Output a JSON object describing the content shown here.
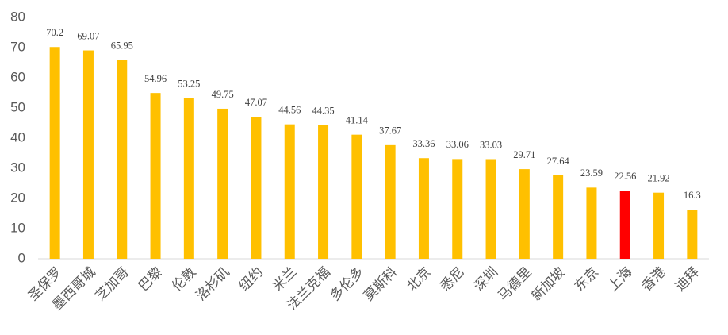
{
  "chart_data": {
    "type": "bar",
    "categories": [
      "圣保罗",
      "墨西哥城",
      "芝加哥",
      "巴黎",
      "伦敦",
      "洛杉矶",
      "纽约",
      "米兰",
      "法兰克福",
      "多伦多",
      "莫斯科",
      "北京",
      "悉尼",
      "深圳",
      "马德里",
      "新加坡",
      "东京",
      "上海",
      "香港",
      "迪拜"
    ],
    "values": [
      70.2,
      69.07,
      65.95,
      54.96,
      53.25,
      49.75,
      47.07,
      44.56,
      44.35,
      41.14,
      37.67,
      33.36,
      33.06,
      33.03,
      29.71,
      27.64,
      23.59,
      22.56,
      21.92,
      16.3
    ],
    "colors": [
      "#ffc000",
      "#ffc000",
      "#ffc000",
      "#ffc000",
      "#ffc000",
      "#ffc000",
      "#ffc000",
      "#ffc000",
      "#ffc000",
      "#ffc000",
      "#ffc000",
      "#ffc000",
      "#ffc000",
      "#ffc000",
      "#ffc000",
      "#ffc000",
      "#ffc000",
      "#ff0000",
      "#ffc000",
      "#ffc000"
    ],
    "ylim": [
      0,
      80
    ],
    "yticks": [
      0,
      10,
      20,
      30,
      40,
      50,
      60,
      70,
      80
    ],
    "grid": false
  }
}
